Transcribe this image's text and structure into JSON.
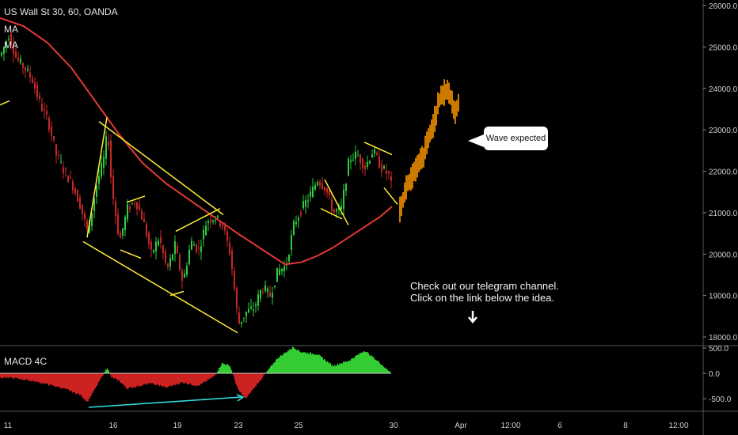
{
  "header": {
    "symbol_line": "US Wall St 30, 60, OANDA",
    "indicators": [
      "MA",
      "MA"
    ],
    "macd_label": "MACD 4C"
  },
  "annotations": {
    "callout": "Wave expected",
    "note_line1": "Check out our telegram channel.",
    "note_line2": "Click on the link below the idea."
  },
  "colors": {
    "up_candle": "#26a69a",
    "bull_candle": "#2ecc40",
    "bear_candle": "#c62828",
    "ma_line": "#e53935",
    "pattern_lines": "#ffee33",
    "projection": "#ff9800",
    "macd_pos": "#33cc33",
    "macd_neg": "#cc2222",
    "divergence_line": "#33dddd"
  },
  "chart_data": [
    {
      "type": "candlestick",
      "title": "US Wall St 30, 60, OANDA",
      "x_tick_labels": [
        "11",
        "16",
        "19",
        "23",
        "25",
        "30",
        "Apr",
        "12:00",
        "6",
        "8",
        "12:00"
      ],
      "y_tick_labels": [
        "26000.0",
        "25000.0",
        "24000.0",
        "23000.0",
        "22000.0",
        "21000.0",
        "20000.0",
        "19000.0",
        "18000.0"
      ],
      "ylim": [
        17900,
        26100
      ],
      "series": [
        {
          "x": [
            0,
            10,
            20,
            30,
            40,
            50,
            60,
            70,
            80,
            90,
            100,
            110,
            120,
            130,
            135,
            140,
            150,
            160,
            170,
            180,
            190,
            200,
            210,
            220,
            230,
            240,
            250,
            260,
            270,
            280,
            290,
            300,
            310,
            320,
            330,
            340,
            350,
            360,
            370,
            380,
            390,
            400,
            410,
            420,
            430,
            440,
            450,
            460,
            470,
            480,
            490,
            495
          ],
          "values": [
            24800,
            25300,
            24700,
            24500,
            24200,
            23600,
            23200,
            22400,
            22000,
            21700,
            21200,
            20500,
            21600,
            22300,
            23000,
            21600,
            20300,
            21100,
            21300,
            20800,
            20000,
            20400,
            19600,
            20200,
            19300,
            20300,
            20100,
            20800,
            20900,
            20700,
            20000,
            18300,
            18600,
            18700,
            19200,
            19000,
            19600,
            19700,
            20700,
            21100,
            21400,
            21800,
            21600,
            21000,
            21100,
            22300,
            22400,
            22100,
            22500,
            22100,
            21900,
            21500
          ]
        },
        {
          "name": "MA",
          "x": [
            0,
            30,
            60,
            90,
            120,
            150,
            180,
            210,
            240,
            270,
            300,
            320,
            340,
            360,
            380,
            400,
            420,
            440,
            460,
            480,
            495
          ],
          "values": [
            25700,
            25500,
            25100,
            24500,
            23700,
            22900,
            22200,
            21700,
            21300,
            20900,
            20500,
            20250,
            20000,
            19750,
            19800,
            19950,
            20150,
            20400,
            20650,
            20900,
            21150
          ]
        },
        {
          "name": "projection",
          "x": [
            505,
            515,
            525,
            535,
            545,
            555,
            565,
            575,
            580
          ],
          "values": [
            21100,
            21700,
            22000,
            22400,
            23000,
            23700,
            24000,
            23400,
            23700
          ]
        }
      ]
    },
    {
      "type": "bar",
      "title": "MACD 4C",
      "y_tick_labels": [
        "500.0",
        "0.0",
        "-500.0"
      ],
      "ylim": [
        -620,
        620
      ],
      "x": [
        0,
        20,
        40,
        60,
        80,
        100,
        110,
        120,
        135,
        140,
        150,
        160,
        175,
        190,
        210,
        230,
        250,
        270,
        280,
        290,
        300,
        310,
        320,
        330,
        350,
        370,
        380,
        400,
        420,
        440,
        460,
        480,
        490
      ],
      "values": [
        -80,
        -100,
        -150,
        -220,
        -300,
        -420,
        -560,
        -300,
        120,
        -80,
        -150,
        -300,
        -250,
        -200,
        -280,
        -180,
        -250,
        -60,
        200,
        150,
        -320,
        -500,
        -300,
        -100,
        300,
        520,
        420,
        380,
        150,
        250,
        450,
        200,
        50
      ]
    }
  ]
}
